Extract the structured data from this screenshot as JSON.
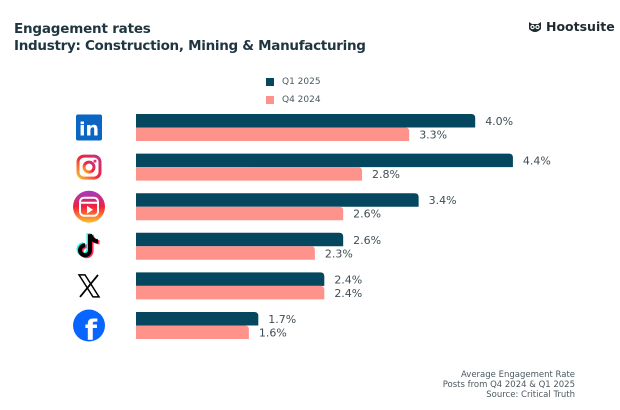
{
  "title": "Engagement rates",
  "subtitle": "Industry: Construction, Mining & Manufacturing",
  "brand": "Hootsuite",
  "footer": [
    "Average Engagement Rate",
    "Posts from Q4 2024 & Q1 2025",
    "Source: Critical Truth"
  ],
  "chart_data": {
    "type": "bar",
    "orientation": "horizontal",
    "categories": [
      "LinkedIn",
      "Instagram",
      "Instagram Reels",
      "TikTok",
      "X",
      "Facebook"
    ],
    "category_icons": [
      "linkedin-icon",
      "instagram-icon",
      "instagram-reels-icon",
      "tiktok-icon",
      "x-icon",
      "facebook-icon"
    ],
    "series": [
      {
        "name": "Q1 2025",
        "color": "#04475f",
        "values": [
          4.0,
          4.4,
          3.4,
          2.6,
          2.4,
          1.7
        ],
        "labels": [
          "4.0%",
          "4.4%",
          "3.4%",
          "2.6%",
          "2.4%",
          "1.7%"
        ]
      },
      {
        "name": "Q4 2024",
        "color": "#fe938c",
        "values": [
          3.3,
          2.8,
          2.6,
          2.3,
          2.4,
          1.6
        ],
        "labels": [
          "3.3%",
          "2.8%",
          "2.6%",
          "2.3%",
          "2.4%",
          "1.6%"
        ]
      }
    ],
    "legend": "top-center",
    "grid": false,
    "unit": "%"
  }
}
